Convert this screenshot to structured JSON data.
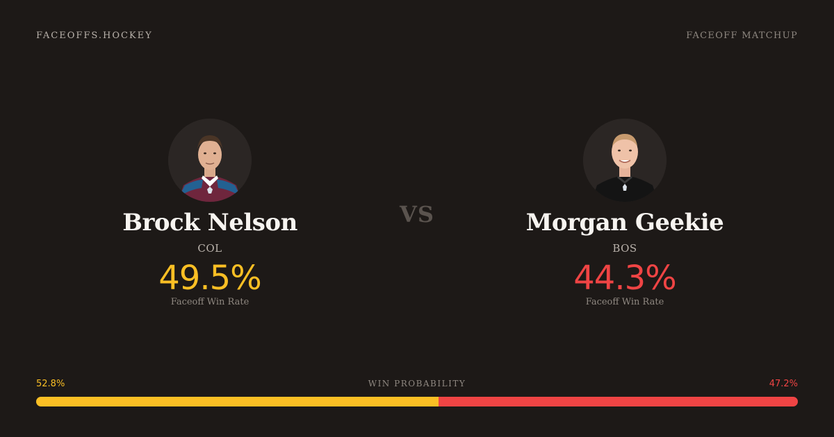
{
  "brand": "FACEOFFS.HOCKEY",
  "tag": "FACEOFF MATCHUP",
  "vs": "VS",
  "players": [
    {
      "name": "Brock Nelson",
      "team": "COL",
      "win_rate": "49.5%",
      "win_rate_label": "Faceoff Win Rate",
      "accent": "#fbbf24"
    },
    {
      "name": "Morgan Geekie",
      "team": "BOS",
      "win_rate": "44.3%",
      "win_rate_label": "Faceoff Win Rate",
      "accent": "#ef4444"
    }
  ],
  "win_probability": {
    "title": "WIN PROBABILITY",
    "left": "52.8%",
    "right": "47.2%",
    "left_fraction": 0.528,
    "right_fraction": 0.472
  }
}
